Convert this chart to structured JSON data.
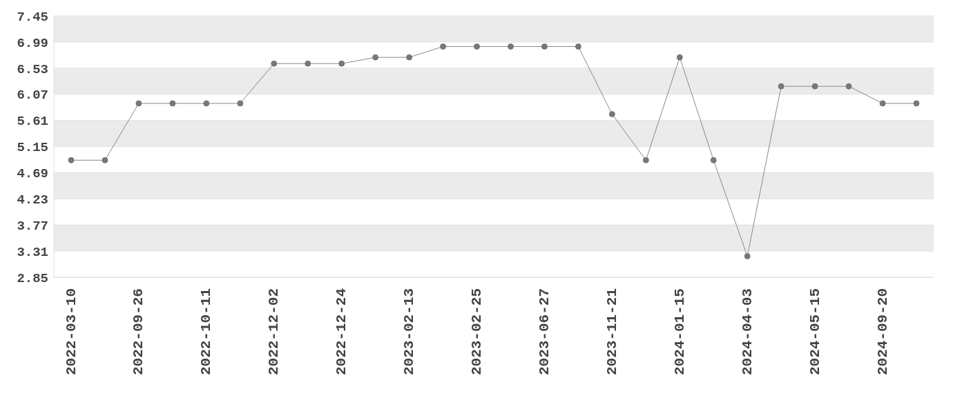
{
  "chart_data": {
    "type": "line",
    "categories": [
      "2022-03-10",
      null,
      "2022-09-26",
      null,
      "2022-10-11",
      null,
      "2022-12-02",
      null,
      "2022-12-24",
      null,
      "2023-02-13",
      null,
      "2023-02-25",
      null,
      "2023-06-27",
      null,
      "2023-11-21",
      null,
      "2024-01-15",
      null,
      "2024-04-03",
      null,
      "2024-05-15",
      null,
      "2024-09-20",
      null
    ],
    "series": [
      {
        "color": "#888888",
        "values": [
          4.91,
          4.91,
          5.91,
          5.91,
          5.91,
          5.91,
          6.61,
          6.61,
          6.61,
          6.72,
          6.72,
          6.91,
          6.91,
          6.91,
          6.91,
          6.91,
          5.72,
          4.91,
          6.72,
          4.91,
          3.22,
          6.21,
          6.21,
          6.21,
          5.91,
          5.91
        ]
      }
    ],
    "ylim": [
      2.85,
      7.45
    ],
    "yticks": [
      2.85,
      3.31,
      3.77,
      4.23,
      4.69,
      5.15,
      5.61,
      6.07,
      6.53,
      6.99,
      7.45
    ],
    "grid": "y",
    "marker": "circle",
    "line_style": "solid"
  }
}
